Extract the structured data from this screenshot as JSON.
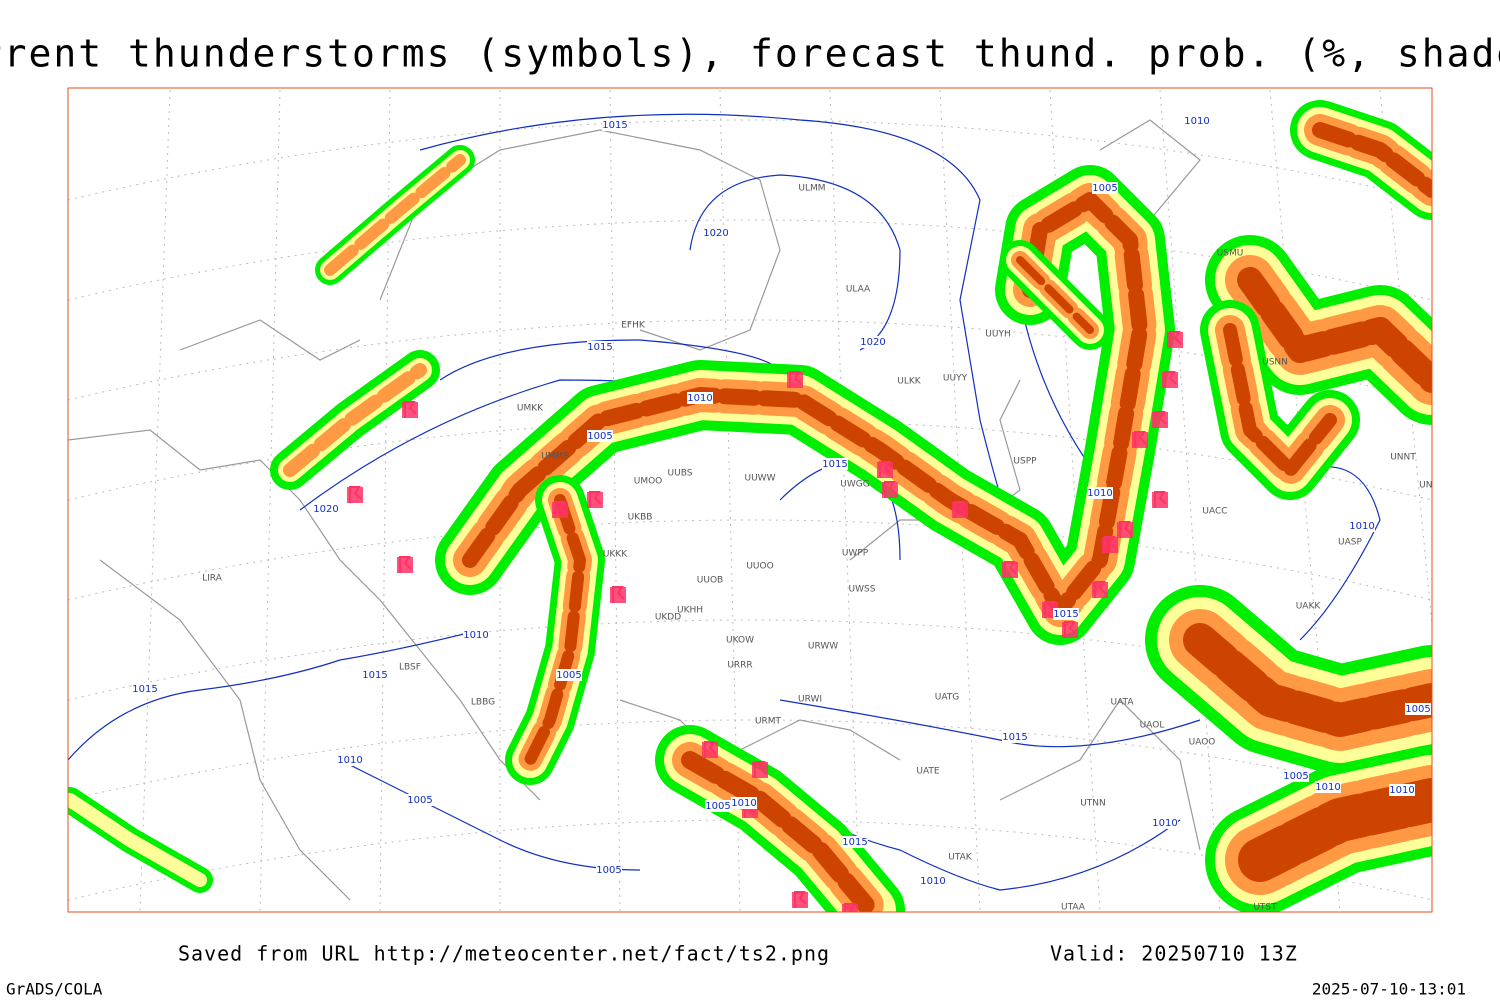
{
  "header": {
    "title": "Current thunderstorms (symbols), forecast thund. prob. (%, shaded)"
  },
  "footer": {
    "source": "Saved from URL http://meteocenter.net/fact/ts2.png",
    "valid": "Valid: 20250710 13Z",
    "software": "GrADS/COLA",
    "timestamp": "2025-07-10-13:01"
  },
  "isobar_labels": [
    "1015",
    "1010",
    "1005",
    "1020",
    "1020",
    "1015",
    "1010",
    "1005",
    "1015",
    "1020",
    "1010",
    "1010",
    "1015",
    "1010",
    "1015",
    "1005",
    "1015",
    "1015",
    "1010",
    "1005",
    "1005",
    "1010",
    "1010",
    "1005",
    "1005",
    "1010",
    "1015",
    "1005",
    "1010",
    "1010"
  ],
  "stations": [
    "ULMM",
    "ULAA",
    "EFHK",
    "ULKK",
    "UUYY",
    "UUYH",
    "UMKK",
    "UMMS",
    "UUBS",
    "UUWW",
    "UWGG",
    "UMOO",
    "USMU",
    "USNN",
    "USPP",
    "UNNT",
    "UNBB",
    "UACC",
    "UASP",
    "UAKK",
    "UATG",
    "UATA",
    "UAOL",
    "UAOO",
    "UATE",
    "UTNN",
    "UTAK",
    "UTAA",
    "UTST",
    "UUOB",
    "UUOO",
    "UKHH",
    "UKDD",
    "UKOW",
    "UWPP",
    "UWSS",
    "URWW",
    "URWI",
    "URRR",
    "URMT",
    "LBSF",
    "LBBG",
    "LIRA",
    "UKKK",
    "UKBB"
  ]
}
